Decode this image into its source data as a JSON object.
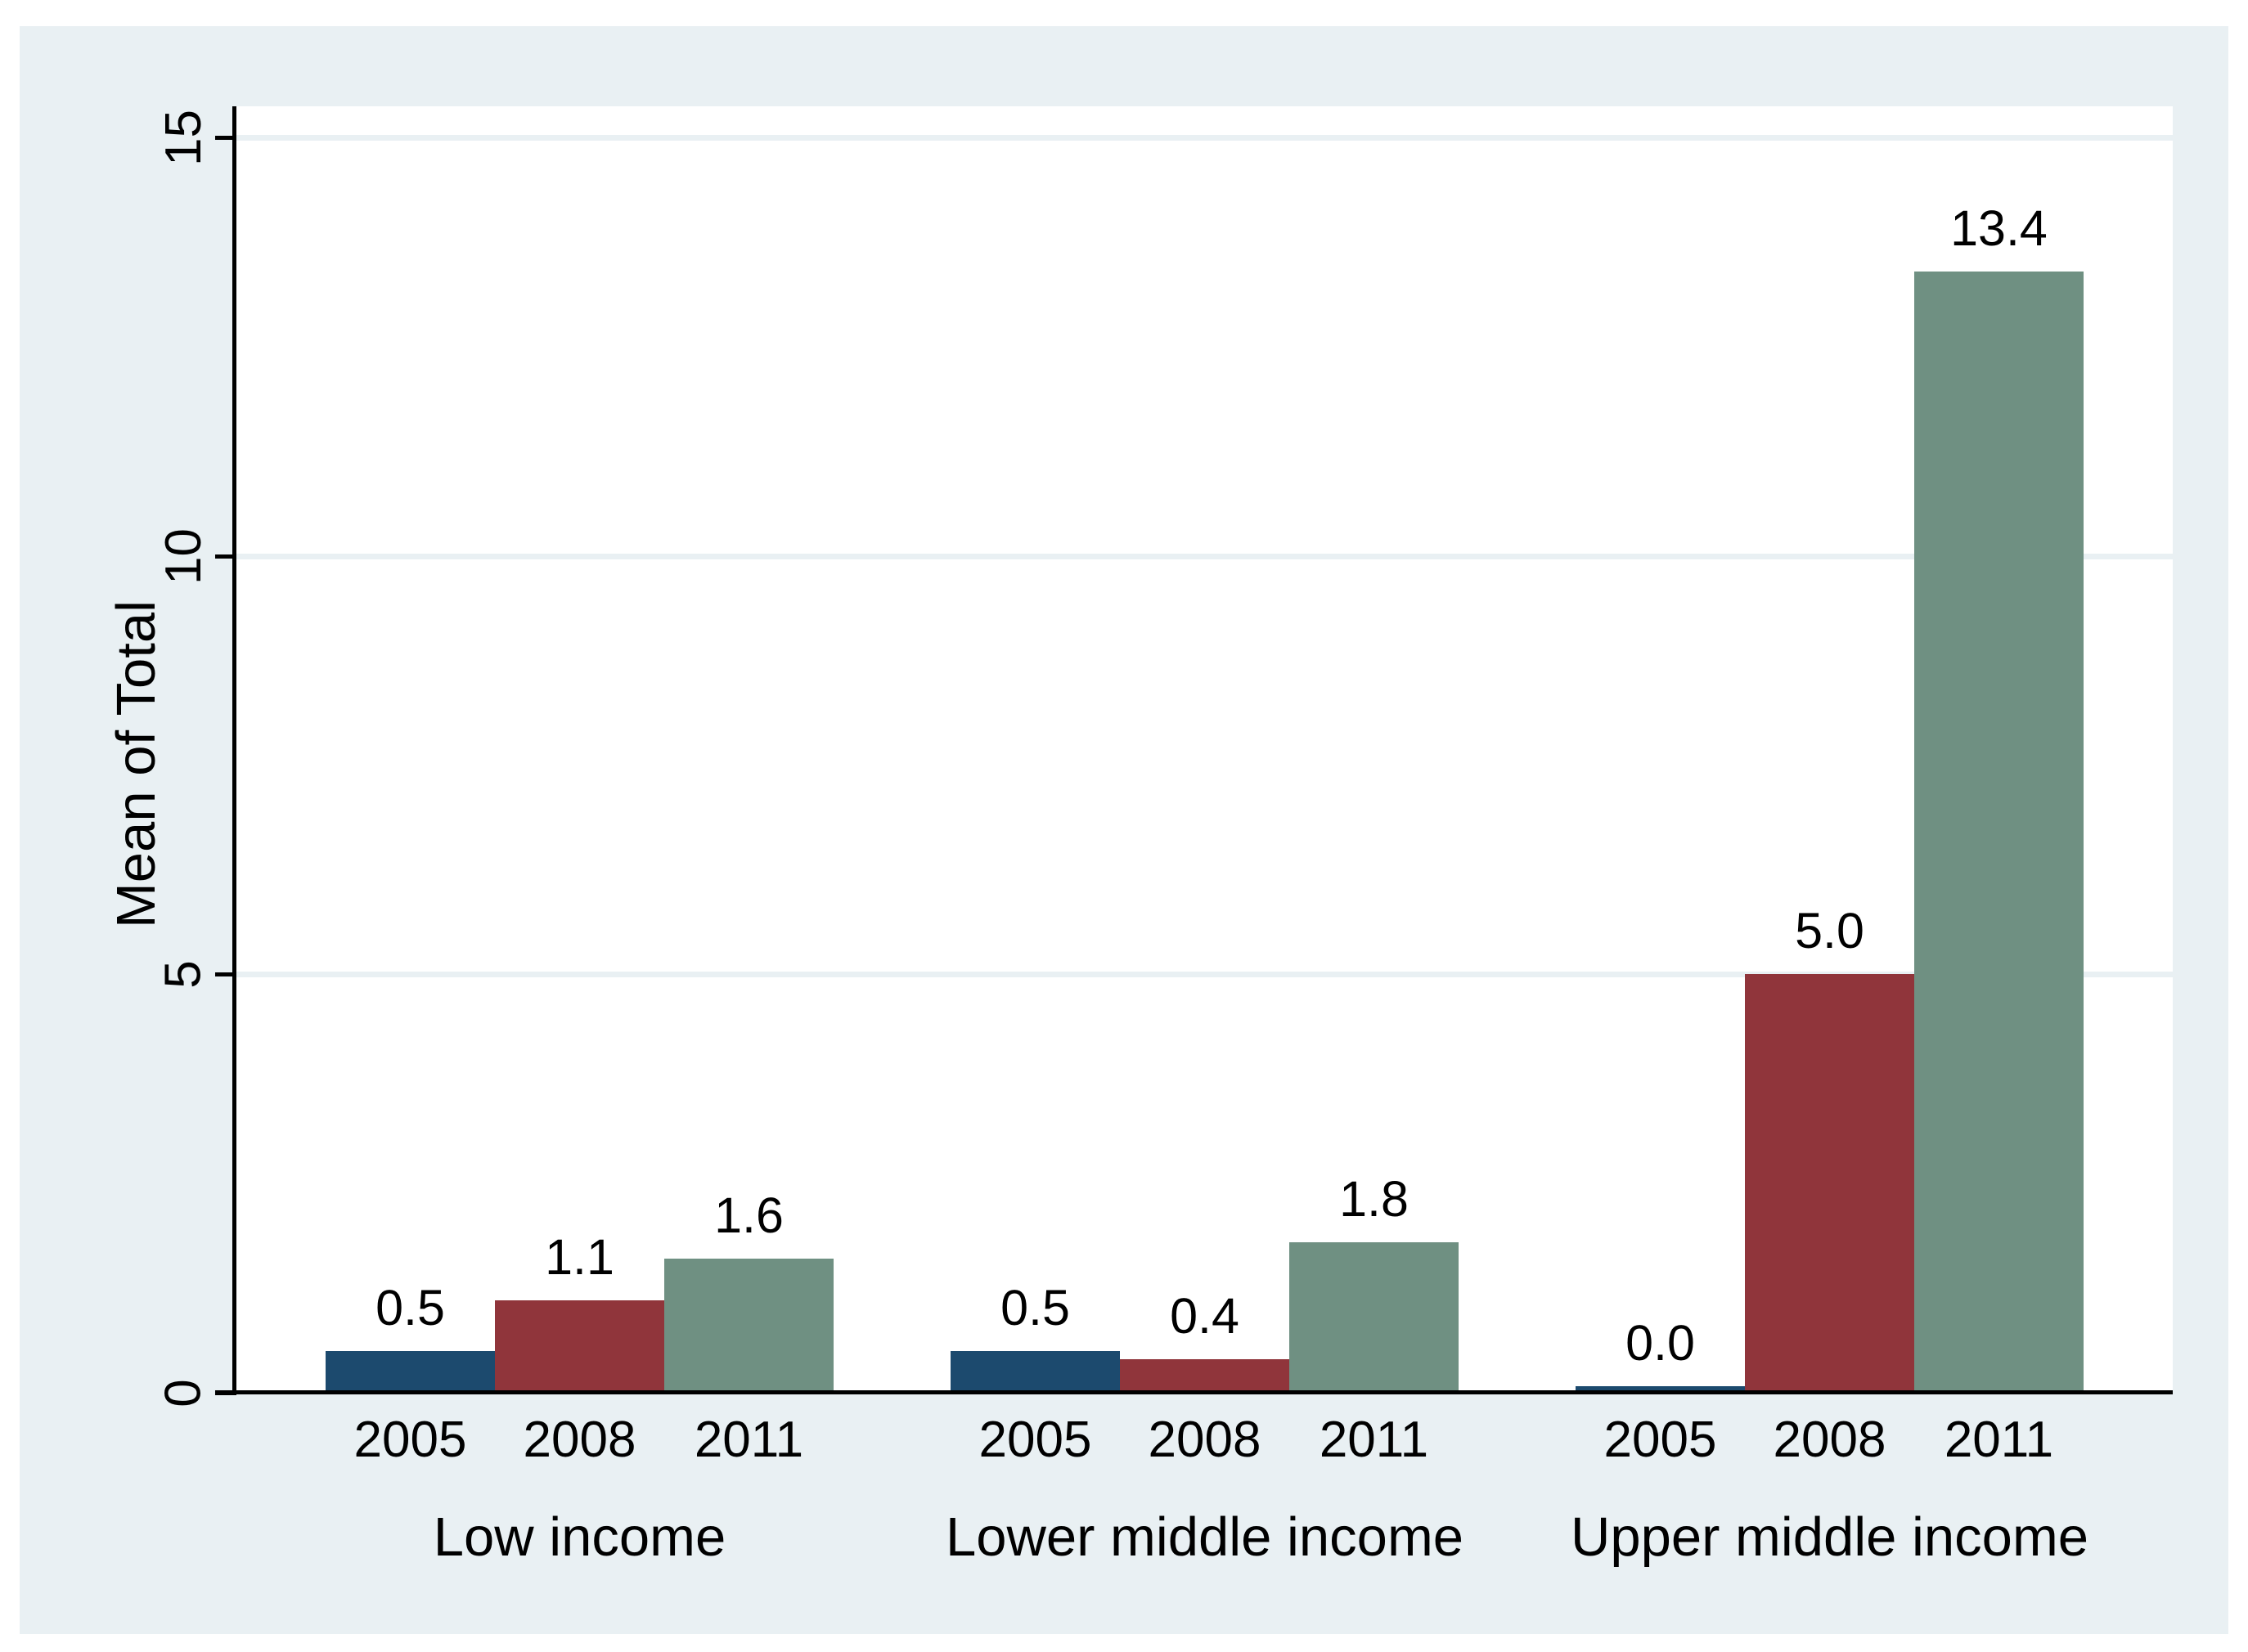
{
  "figure": {
    "page_background": "#ffffff",
    "canvas_background": "#e9f0f3",
    "plot_background": "#ffffff",
    "grid_color": "#e9f0f3",
    "axis_color": "#000000",
    "text_color": "#000000"
  },
  "chart_data": {
    "type": "bar",
    "title": "",
    "xlabel": "",
    "ylabel": "Mean of Total",
    "ylim": [
      0,
      15.4
    ],
    "grid": true,
    "legend_position": "none",
    "yticks": [
      {
        "value": 0,
        "label": "0"
      },
      {
        "value": 5,
        "label": "5"
      },
      {
        "value": 10,
        "label": "10"
      },
      {
        "value": 15,
        "label": "15"
      }
    ],
    "bar_colors": {
      "2005": "#1c4a6e",
      "2008": "#90353b",
      "2011": "#6f9082"
    },
    "groups": [
      {
        "label": "Low income",
        "bars": [
          {
            "category": "2005",
            "value": 0.5,
            "value_label": "0.5"
          },
          {
            "category": "2008",
            "value": 1.1,
            "value_label": "1.1"
          },
          {
            "category": "2011",
            "value": 1.6,
            "value_label": "1.6"
          }
        ]
      },
      {
        "label": "Lower middle income",
        "bars": [
          {
            "category": "2005",
            "value": 0.5,
            "value_label": "0.5"
          },
          {
            "category": "2008",
            "value": 0.4,
            "value_label": "0.4"
          },
          {
            "category": "2011",
            "value": 1.8,
            "value_label": "1.8"
          }
        ]
      },
      {
        "label": "Upper middle income",
        "bars": [
          {
            "category": "2005",
            "value": 0.0,
            "value_label": "0.0"
          },
          {
            "category": "2008",
            "value": 5.0,
            "value_label": "5.0"
          },
          {
            "category": "2011",
            "value": 13.4,
            "value_label": "13.4"
          }
        ]
      }
    ]
  }
}
